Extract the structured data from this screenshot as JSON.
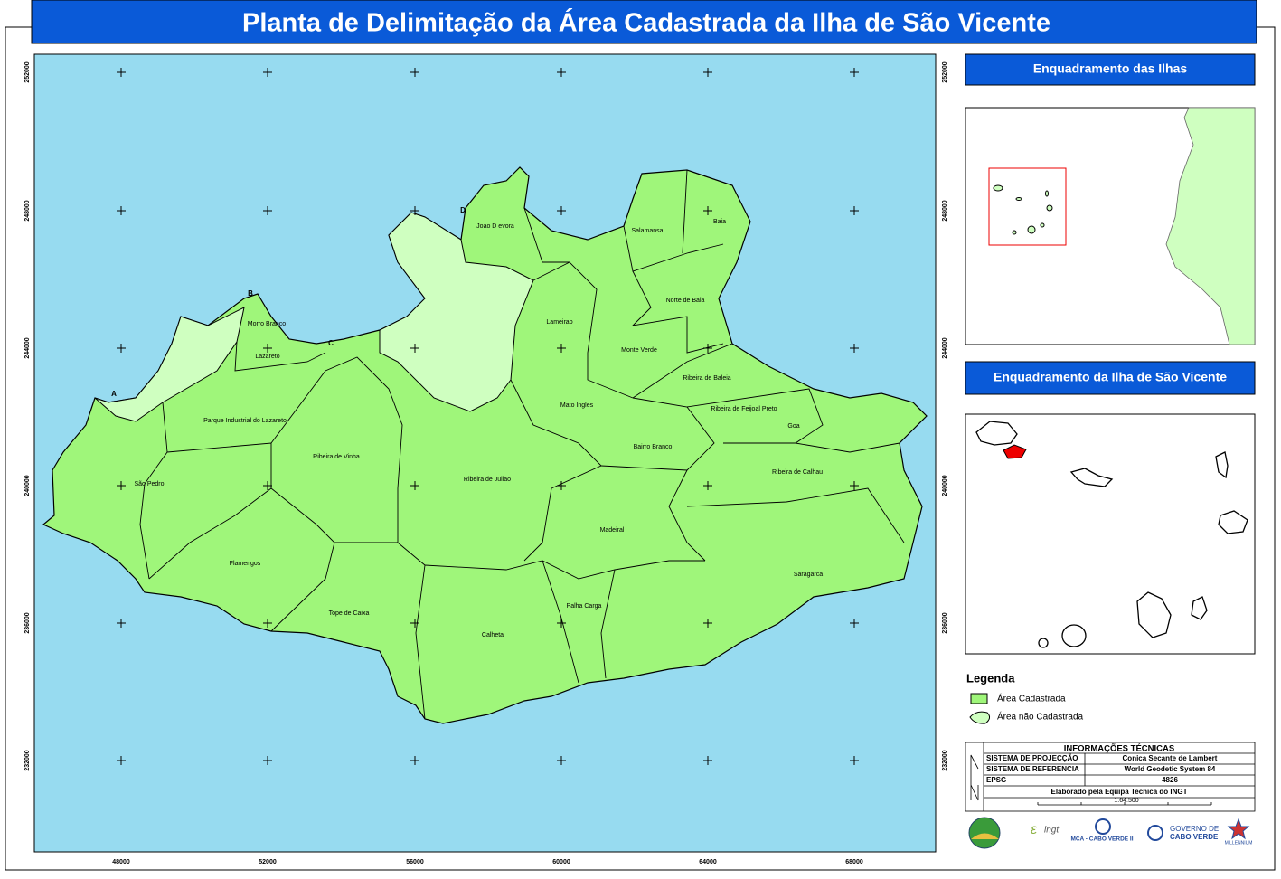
{
  "header": {
    "title": "Planta de Delimitação da Área Cadastrada da Ilha de São Vicente"
  },
  "map": {
    "x_tick_labels": [
      "48000",
      "52000",
      "56000",
      "60000",
      "64000",
      "68000"
    ],
    "y_tick_labels": [
      "252000",
      "248000",
      "244000",
      "240000",
      "236000",
      "232000"
    ],
    "regions": [
      "Joao D evora",
      "Salamansa",
      "Baia",
      "Morro Branco",
      "Lazareto",
      "Norte de Baia",
      "Lameirao",
      "Monte Verde",
      "Ribeira de Baleia",
      "Ribeira de Feijoal Preto",
      "Mato Ingles",
      "Goa",
      "Parque Industrial do Lazareto",
      "Bairro Branco",
      "Ribeira de Vinha",
      "Ribeira de Juliao",
      "Ribeira de Calhau",
      "São Pedro",
      "Madeiral",
      "Flamengos",
      "Saragarca",
      "Palha Carga",
      "Tope de Caixa",
      "Calheta"
    ],
    "points": [
      "A",
      "B",
      "C",
      "D"
    ]
  },
  "insets": {
    "islands_title": "Enquadramento das Ilhas",
    "sao_vicente_title": "Enquadramento da Ilha de São Vicente"
  },
  "legend": {
    "title": "Legenda",
    "items": [
      "Área Cadastrada",
      "Área não Cadastrada"
    ]
  },
  "technical_info": {
    "title": "INFORMAÇÕES TÉCNICAS",
    "rows": [
      [
        "SISTEMA DE PROJECÇÃO",
        "Conica Secante de Lambert"
      ],
      [
        "SISTEMA DE REFERENCIA",
        "World Geodetic System 84"
      ],
      [
        "EPSG",
        "4826"
      ]
    ],
    "credit": "Elaborado pela Equipa Tecnica do INGT",
    "scale": "1:64.500"
  },
  "logos": [
    "MCA - CABO VERDE II",
    "GOVERNO DE",
    "CABO VERDE",
    "MILLENNIUM"
  ]
}
